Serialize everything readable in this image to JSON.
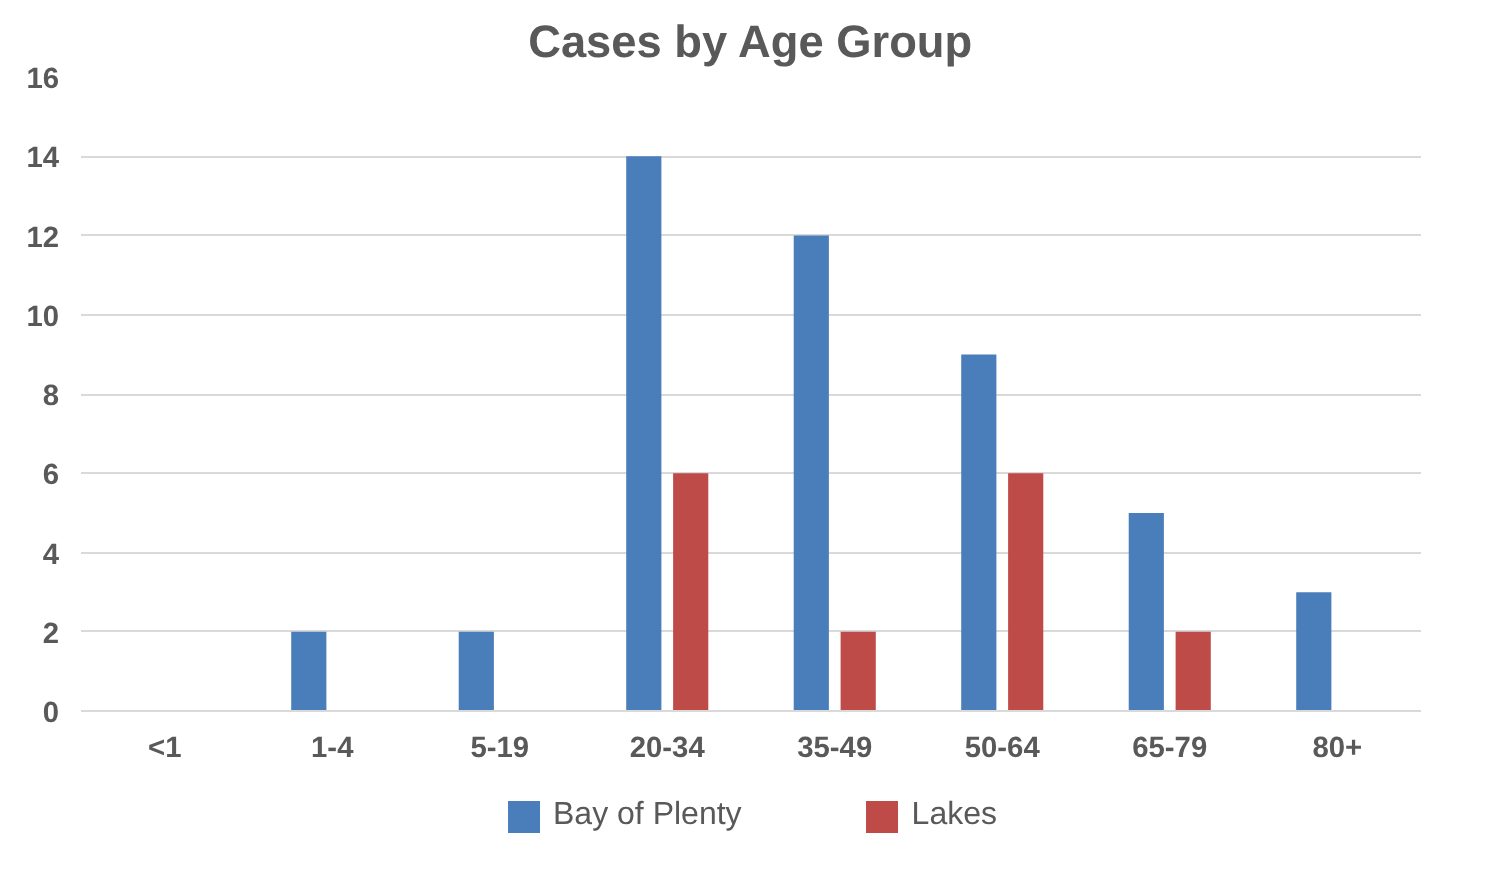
{
  "chart_data": {
    "type": "bar",
    "title": "Cases by Age Group",
    "categories": [
      "<1",
      "1-4",
      "5-19",
      "20-34",
      "35-49",
      "50-64",
      "65-79",
      "80+"
    ],
    "series": [
      {
        "name": "Bay of Plenty",
        "color": "#4a7ebb",
        "values": [
          0,
          2,
          2,
          14,
          12,
          9,
          5,
          3
        ]
      },
      {
        "name": "Lakes",
        "color": "#be4b48",
        "values": [
          0,
          0,
          0,
          6,
          2,
          6,
          2,
          0
        ]
      }
    ],
    "ylim": [
      0,
      16
    ],
    "yticks": [
      0,
      2,
      4,
      6,
      8,
      10,
      12,
      14,
      16
    ],
    "grid": "y",
    "legend": "bottom"
  }
}
